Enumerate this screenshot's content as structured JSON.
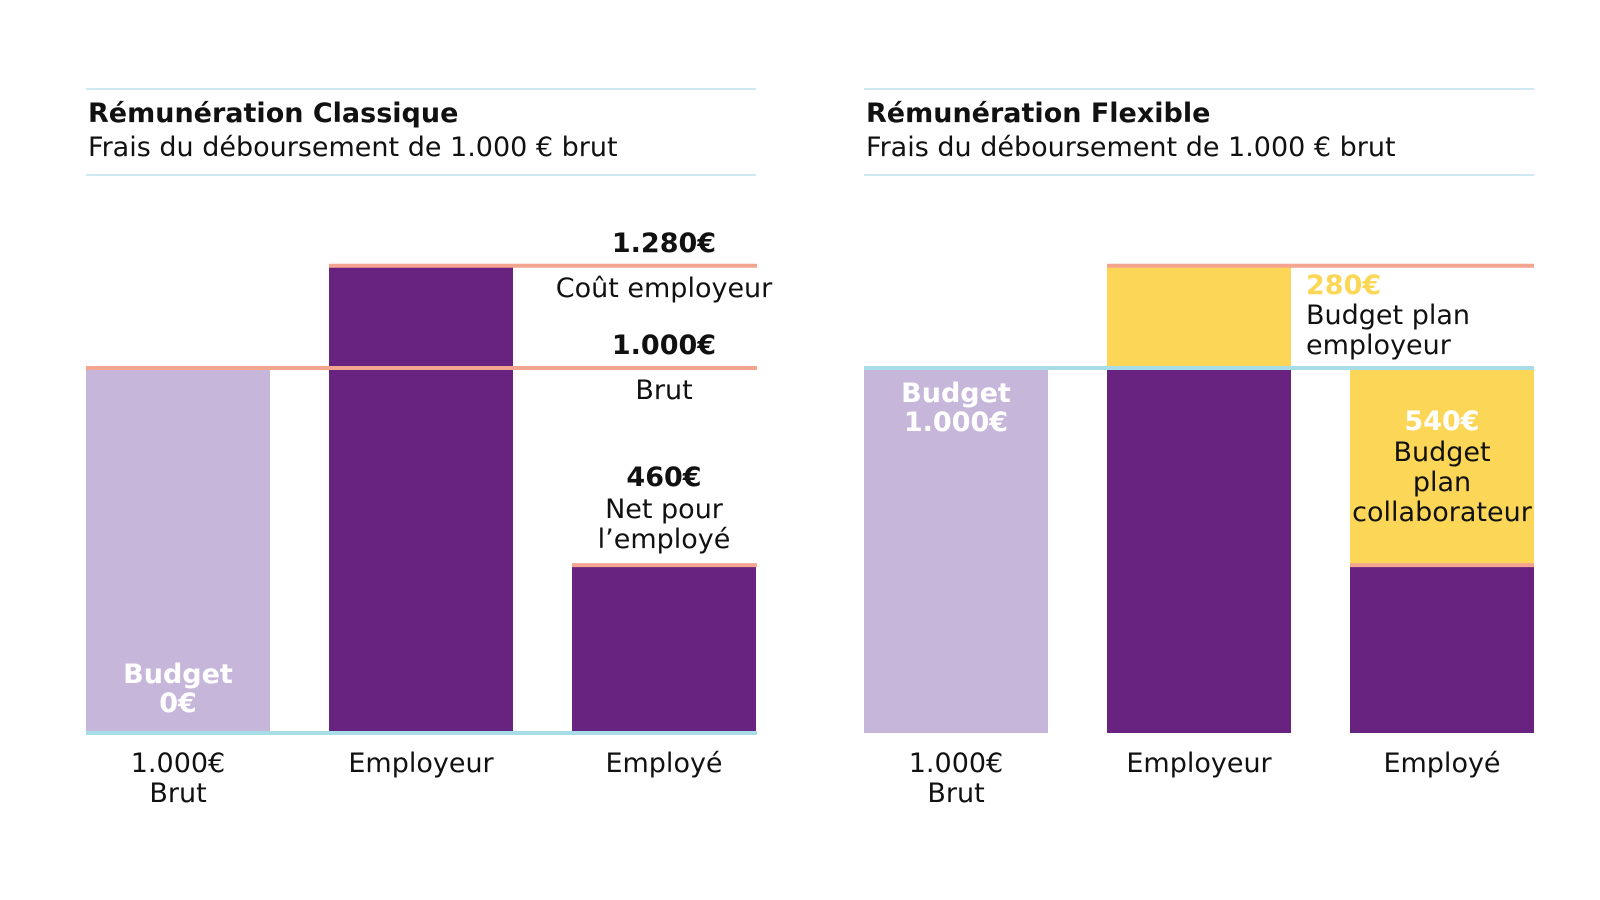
{
  "panels": [
    {
      "title": "Rémunération Classique",
      "subtitle": "Frais du déboursement de 1.000 € brut"
    },
    {
      "title": "Rémunération Flexible",
      "subtitle": "Frais du déboursement de 1.000 € brut"
    }
  ],
  "colors": {
    "purple": "#68227f",
    "lavender": "#c6b6da",
    "yellow": "#fcd757",
    "salmon": "#f4a58f",
    "lightblue": "#a8dce6"
  },
  "chart_data": [
    {
      "type": "bar",
      "title": "Rémunération Classique",
      "categories": [
        "1.000€\nBrut",
        "Employeur",
        "Employé"
      ],
      "series": [
        {
          "values": [
            1000,
            0,
            0
          ]
        },
        {
          "values": [
            0,
            1280,
            460
          ]
        }
      ],
      "reference_lines": [
        1280,
        1000
      ],
      "annotations": [
        {
          "value": "1.280€",
          "label": "Coût employeur"
        },
        {
          "value": "1.000€",
          "label": "Brut"
        },
        {
          "value": "460€",
          "label": "Net pour\nl’employé"
        }
      ],
      "bar_labels": [
        {
          "category": "1.000€\nBrut",
          "text": "Budget\n0€"
        }
      ],
      "ylim": [
        0,
        1280
      ]
    },
    {
      "type": "bar",
      "title": "Rémunération Flexible",
      "categories": [
        "1.000€\nBrut",
        "Employeur",
        "Employé"
      ],
      "series": [
        {
          "values": [
            1000,
            0,
            0
          ]
        },
        {
          "values": [
            0,
            1000,
            460
          ]
        },
        {
          "values": [
            0,
            280,
            540
          ]
        }
      ],
      "reference_lines": [
        1280,
        1000
      ],
      "annotations": [
        {
          "value": "280€",
          "label": "Budget plan\nemployeur"
        },
        {
          "value": "540€",
          "label": "Budget\nplan\ncollaborateur"
        }
      ],
      "bar_labels": [
        {
          "category": "1.000€\nBrut",
          "text": "Budget\n1.000€"
        }
      ],
      "ylim": [
        0,
        1280
      ]
    }
  ]
}
